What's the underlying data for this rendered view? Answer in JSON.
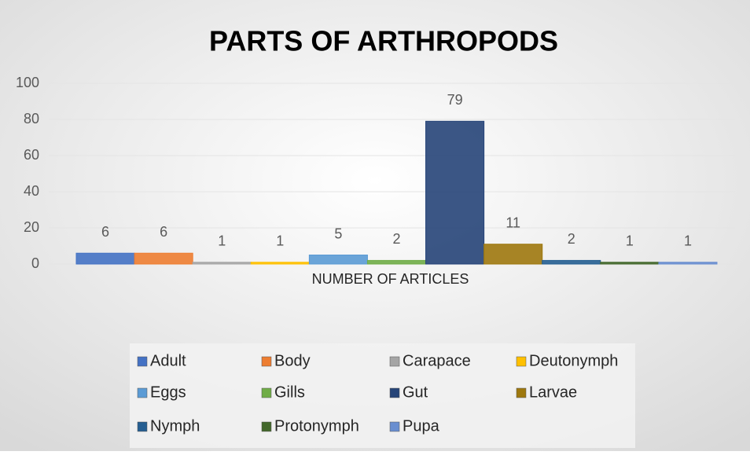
{
  "chart_data": {
    "type": "bar",
    "title": "PARTS OF ARTHROPODS",
    "categories": [
      "NUMBER OF ARTICLES"
    ],
    "series": [
      {
        "name": "Adult",
        "color": "#4472c4",
        "values": [
          6
        ]
      },
      {
        "name": "Body",
        "color": "#ed7d31",
        "values": [
          6
        ]
      },
      {
        "name": "Carapace",
        "color": "#a5a5a5",
        "values": [
          1
        ]
      },
      {
        "name": "Deutonymph",
        "color": "#ffc000",
        "values": [
          1
        ]
      },
      {
        "name": "Eggs",
        "color": "#5b9bd5",
        "values": [
          5
        ]
      },
      {
        "name": "Gills",
        "color": "#70ad47",
        "values": [
          2
        ]
      },
      {
        "name": "Gut",
        "color": "#264478",
        "values": [
          79
        ]
      },
      {
        "name": "Larvae",
        "color": "#9e780e",
        "values": [
          11
        ]
      },
      {
        "name": "Nymph",
        "color": "#255e91",
        "values": [
          2
        ]
      },
      {
        "name": "Protonymph",
        "color": "#43682b",
        "values": [
          1
        ]
      },
      {
        "name": "Pupa",
        "color": "#698ed0",
        "values": [
          1
        ]
      }
    ],
    "ylim": [
      0,
      100
    ],
    "yticks": [
      0,
      20,
      40,
      60,
      80,
      100
    ],
    "grid": true,
    "legend": "bottom"
  }
}
